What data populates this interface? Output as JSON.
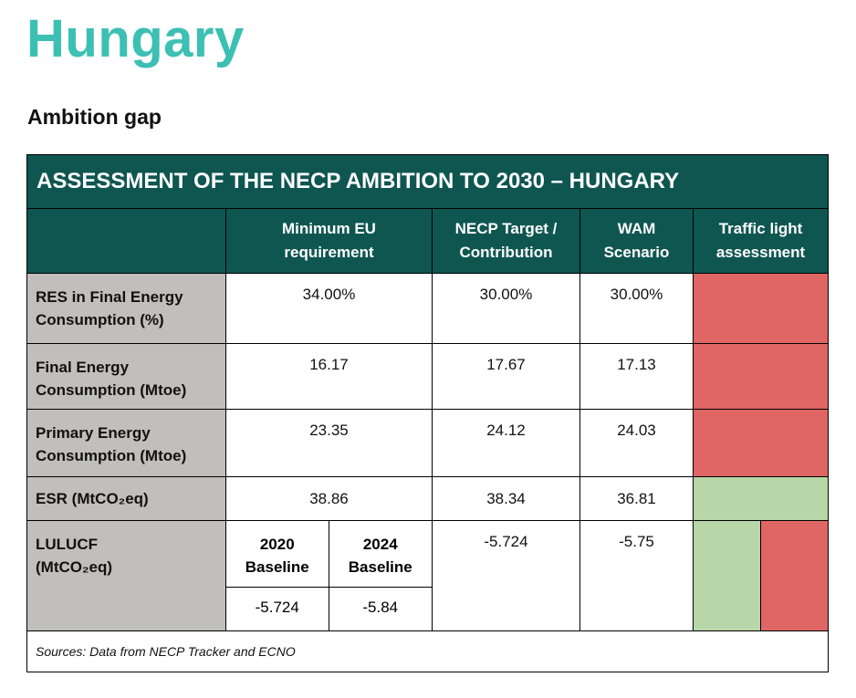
{
  "page": {
    "country": "Hungary",
    "section": "Ambition gap"
  },
  "table": {
    "title": "ASSESSMENT OF THE NECP AMBITION TO 2030 – HUNGARY",
    "headers": {
      "min_eu_line1": "Minimum EU",
      "min_eu_line2": "requirement",
      "necp_line1": "NECP Target /",
      "necp_line2": "Contribution",
      "wam_line1": "WAM",
      "wam_line2": "Scenario",
      "traffic_line1": "Traffic light",
      "traffic_line2": "assessment"
    },
    "rows": [
      {
        "label_line1": "RES in Final Energy",
        "label_line2": "Consumption (%)",
        "min_eu": "34.00%",
        "necp": "30.00%",
        "wam": "30.00%",
        "traffic": "red"
      },
      {
        "label_line1": "Final Energy",
        "label_line2": "Consumption (Mtoe)",
        "min_eu": "16.17",
        "necp": "17.67",
        "wam": "17.13",
        "traffic": "red"
      },
      {
        "label_line1": "Primary Energy",
        "label_line2": "Consumption (Mtoe)",
        "min_eu": "23.35",
        "necp": "24.12",
        "wam": "24.03",
        "traffic": "red"
      },
      {
        "label": "ESR (MtCO₂eq)",
        "min_eu": "38.86",
        "necp": "38.34",
        "wam": "36.81",
        "traffic": "green"
      }
    ],
    "lulucf": {
      "label_line1": "LULUCF",
      "label_line2": "(MtCO₂eq)",
      "baseline_2020_line1": "2020",
      "baseline_2020_line2": "Baseline",
      "baseline_2024_line1": "2024",
      "baseline_2024_line2": "Baseline",
      "value_2020": "-5.724",
      "value_2024": "-5.84",
      "necp": "-5.724",
      "wam": "-5.75",
      "traffic": [
        "green",
        "red"
      ]
    },
    "sources": "Sources: Data from NECP Tracker and ECNO"
  },
  "colors": {
    "title_teal": "#3cc0b3",
    "header_dark_green": "#0f5651",
    "label_grey": "#c0bfbd",
    "traffic_red": "#df6664",
    "traffic_green": "#b8d7a8"
  }
}
